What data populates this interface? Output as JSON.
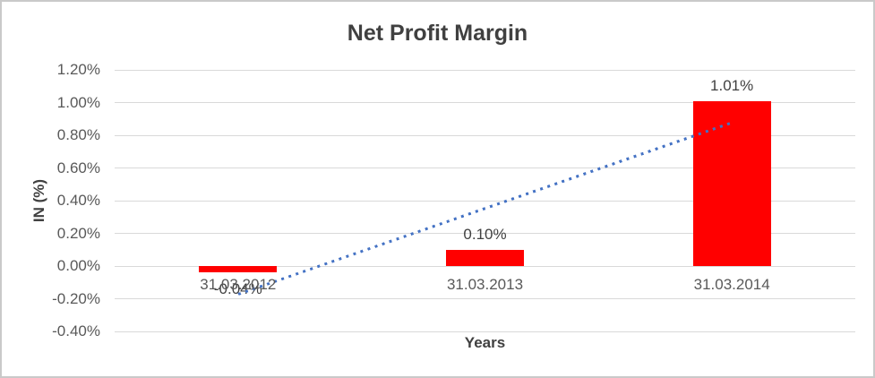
{
  "chart_data": {
    "type": "bar",
    "title": "Net Profit Margin",
    "xlabel": "Years",
    "ylabel": "IN (%)",
    "categories": [
      "31.03.2012",
      "31.03.2013",
      "31.03.2014"
    ],
    "values": [
      -0.04,
      0.1,
      1.01
    ],
    "data_labels": [
      "-0.04%",
      "0.10%",
      "1.01%"
    ],
    "yticks": [
      1.2,
      1.0,
      0.8,
      0.6,
      0.4,
      0.2,
      0.0,
      -0.2,
      -0.4
    ],
    "ytick_labels": [
      "1.20%",
      "1.00%",
      "0.80%",
      "0.60%",
      "0.40%",
      "0.20%",
      "0.00%",
      "-0.20%",
      "-0.40%"
    ],
    "ylim": [
      -0.4,
      1.2
    ],
    "grid": true,
    "legend": "none",
    "colors": {
      "bar": "#ff0000",
      "trendline": "#4472c4",
      "gridline": "#d9d9d9",
      "title_text": "#404040",
      "tick_text": "#595959",
      "frame_border": "#c9c9c9"
    },
    "trendline": {
      "type": "linear",
      "style": "dotted",
      "color": "#4472c4",
      "start_value": -0.17,
      "end_value": 0.88
    }
  }
}
